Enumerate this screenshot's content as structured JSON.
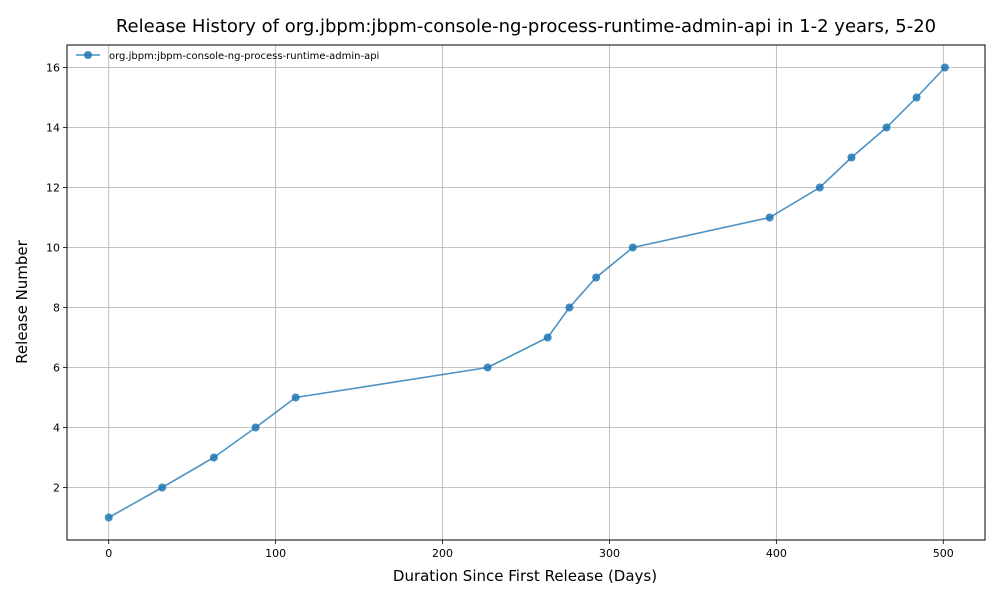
{
  "chart_data": {
    "type": "line",
    "title": "Release History of org.jbpm:jbpm-console-ng-process-runtime-admin-api in 1-2 years, 5-20",
    "xlabel": "Duration Since First Release (Days)",
    "ylabel": "Release Number",
    "xlim": [
      -25,
      525
    ],
    "ylim": [
      0.25,
      16.75
    ],
    "xticks": [
      0,
      100,
      200,
      300,
      400,
      500
    ],
    "yticks": [
      2,
      4,
      6,
      8,
      10,
      12,
      14,
      16
    ],
    "grid": true,
    "legend_position": "top-left",
    "series_color": "#1f77b4",
    "series": [
      {
        "name": "org.jbpm:jbpm-console-ng-process-runtime-admin-api",
        "x": [
          0,
          32,
          63,
          88,
          112,
          227,
          263,
          276,
          292,
          314,
          396,
          426,
          445,
          466,
          484,
          501
        ],
        "y": [
          1,
          2,
          3,
          4,
          5,
          6,
          7,
          8,
          9,
          10,
          11,
          12,
          13,
          14,
          15,
          16
        ]
      }
    ]
  }
}
